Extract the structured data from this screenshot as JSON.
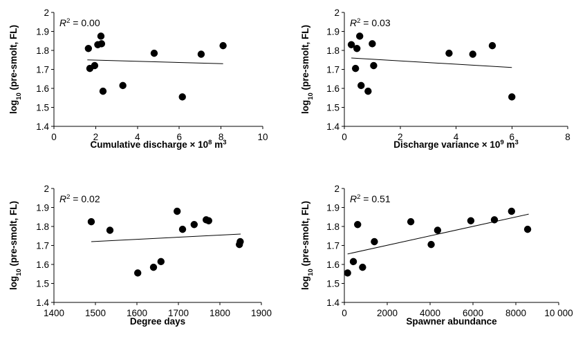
{
  "chart_data": [
    {
      "type": "scatter",
      "xlabel": "Cumulative discharge × 10",
      "xlabel_sup": "8",
      "xlabel_unit": " m",
      "xlabel_unit_sup": "3",
      "ylabel": "log",
      "ylabel_sub": "10",
      "ylabel_rest": " (pre-smolt, FL)",
      "annotation": "R",
      "annotation_sup": "2",
      "annotation_value": " = 0.00",
      "xlim": [
        0,
        10
      ],
      "ylim": [
        1.4,
        2.0
      ],
      "xticks": [
        0,
        2,
        4,
        6,
        8,
        10
      ],
      "xtick_labels": [
        "0",
        "2",
        "4",
        "6",
        "8",
        "10"
      ],
      "yticks": [
        1.4,
        1.5,
        1.6,
        1.7,
        1.8,
        1.9,
        2.0
      ],
      "ytick_labels": [
        "1.4",
        "1.5",
        "1.6",
        "1.7",
        "1.8",
        "1.9",
        "2"
      ],
      "trend": {
        "x": [
          1.6,
          8.1
        ],
        "y": [
          1.75,
          1.73
        ]
      },
      "points": [
        {
          "x": 1.65,
          "y": 1.81
        },
        {
          "x": 1.72,
          "y": 1.705
        },
        {
          "x": 1.95,
          "y": 1.72
        },
        {
          "x": 2.1,
          "y": 1.83
        },
        {
          "x": 2.25,
          "y": 1.875
        },
        {
          "x": 2.28,
          "y": 1.835
        },
        {
          "x": 2.35,
          "y": 1.585
        },
        {
          "x": 3.3,
          "y": 1.615
        },
        {
          "x": 4.8,
          "y": 1.785
        },
        {
          "x": 6.15,
          "y": 1.555
        },
        {
          "x": 7.05,
          "y": 1.78
        },
        {
          "x": 8.1,
          "y": 1.825
        }
      ]
    },
    {
      "type": "scatter",
      "xlabel": "Discharge variance × 10",
      "xlabel_sup": "9",
      "xlabel_unit": " m",
      "xlabel_unit_sup": "3",
      "ylabel": "log",
      "ylabel_sub": "10",
      "ylabel_rest": " (pre-smolt, FL)",
      "annotation": "R",
      "annotation_sup": "2",
      "annotation_value": " = 0.03",
      "xlim": [
        0,
        8
      ],
      "ylim": [
        1.4,
        2.0
      ],
      "xticks": [
        0,
        2,
        4,
        6,
        8
      ],
      "xtick_labels": [
        "0",
        "2",
        "4",
        "6",
        "8"
      ],
      "yticks": [
        1.4,
        1.5,
        1.6,
        1.7,
        1.8,
        1.9,
        2.0
      ],
      "ytick_labels": [
        "1.4",
        "1.5",
        "1.6",
        "1.7",
        "1.8",
        "1.9",
        "2"
      ],
      "trend": {
        "x": [
          0.25,
          6.0
        ],
        "y": [
          1.76,
          1.71
        ]
      },
      "points": [
        {
          "x": 0.25,
          "y": 1.83
        },
        {
          "x": 0.4,
          "y": 1.705
        },
        {
          "x": 0.45,
          "y": 1.81
        },
        {
          "x": 0.55,
          "y": 1.875
        },
        {
          "x": 0.6,
          "y": 1.615
        },
        {
          "x": 0.85,
          "y": 1.585
        },
        {
          "x": 1.0,
          "y": 1.835
        },
        {
          "x": 1.05,
          "y": 1.72
        },
        {
          "x": 3.75,
          "y": 1.785
        },
        {
          "x": 4.6,
          "y": 1.78
        },
        {
          "x": 5.3,
          "y": 1.825
        },
        {
          "x": 6.0,
          "y": 1.555
        }
      ]
    },
    {
      "type": "scatter",
      "xlabel": "Degree days",
      "ylabel": "log",
      "ylabel_sub": "10",
      "ylabel_rest": " (pre-smolt, FL)",
      "annotation": "R",
      "annotation_sup": "2",
      "annotation_value": " = 0.02",
      "xlim": [
        1400,
        1900
      ],
      "ylim": [
        1.4,
        2.0
      ],
      "xticks": [
        1400,
        1500,
        1600,
        1700,
        1800,
        1900
      ],
      "xtick_labels": [
        "1400",
        "1500",
        "1600",
        "1700",
        "1800",
        "1900"
      ],
      "yticks": [
        1.4,
        1.5,
        1.6,
        1.7,
        1.8,
        1.9,
        2.0
      ],
      "ytick_labels": [
        "1.4",
        "1.5",
        "1.6",
        "1.7",
        "1.8",
        "1.9",
        "2"
      ],
      "trend": {
        "x": [
          1490,
          1850
        ],
        "y": [
          1.72,
          1.76
        ]
      },
      "points": [
        {
          "x": 1490,
          "y": 1.825
        },
        {
          "x": 1535,
          "y": 1.78
        },
        {
          "x": 1602,
          "y": 1.555
        },
        {
          "x": 1640,
          "y": 1.585
        },
        {
          "x": 1658,
          "y": 1.615
        },
        {
          "x": 1697,
          "y": 1.88
        },
        {
          "x": 1710,
          "y": 1.785
        },
        {
          "x": 1738,
          "y": 1.81
        },
        {
          "x": 1767,
          "y": 1.835
        },
        {
          "x": 1773,
          "y": 1.83
        },
        {
          "x": 1847,
          "y": 1.705
        },
        {
          "x": 1849,
          "y": 1.72
        }
      ]
    },
    {
      "type": "scatter",
      "xlabel": "Spawner abundance",
      "ylabel": "log",
      "ylabel_sub": "10",
      "ylabel_rest": " (pre-smolt, FL)",
      "annotation": "R",
      "annotation_sup": "2",
      "annotation_value": " = 0.51",
      "xlim": [
        0,
        10000
      ],
      "ylim": [
        1.4,
        2.0
      ],
      "xticks": [
        0,
        2000,
        4000,
        6000,
        8000,
        10000
      ],
      "xtick_labels": [
        "0",
        "2000",
        "4000",
        "6000",
        "8000",
        "10 000"
      ],
      "yticks": [
        1.4,
        1.5,
        1.6,
        1.7,
        1.8,
        1.9,
        2.0
      ],
      "ytick_labels": [
        "1.4",
        "1.5",
        "1.6",
        "1.7",
        "1.8",
        "1.9",
        "2"
      ],
      "trend": {
        "x": [
          150,
          8600
        ],
        "y": [
          1.655,
          1.865
        ]
      },
      "points": [
        {
          "x": 150,
          "y": 1.555
        },
        {
          "x": 420,
          "y": 1.615
        },
        {
          "x": 620,
          "y": 1.81
        },
        {
          "x": 850,
          "y": 1.585
        },
        {
          "x": 1400,
          "y": 1.72
        },
        {
          "x": 3100,
          "y": 1.825
        },
        {
          "x": 4050,
          "y": 1.705
        },
        {
          "x": 4350,
          "y": 1.78
        },
        {
          "x": 5900,
          "y": 1.83
        },
        {
          "x": 7000,
          "y": 1.835
        },
        {
          "x": 7800,
          "y": 1.88
        },
        {
          "x": 8550,
          "y": 1.785
        }
      ]
    }
  ]
}
